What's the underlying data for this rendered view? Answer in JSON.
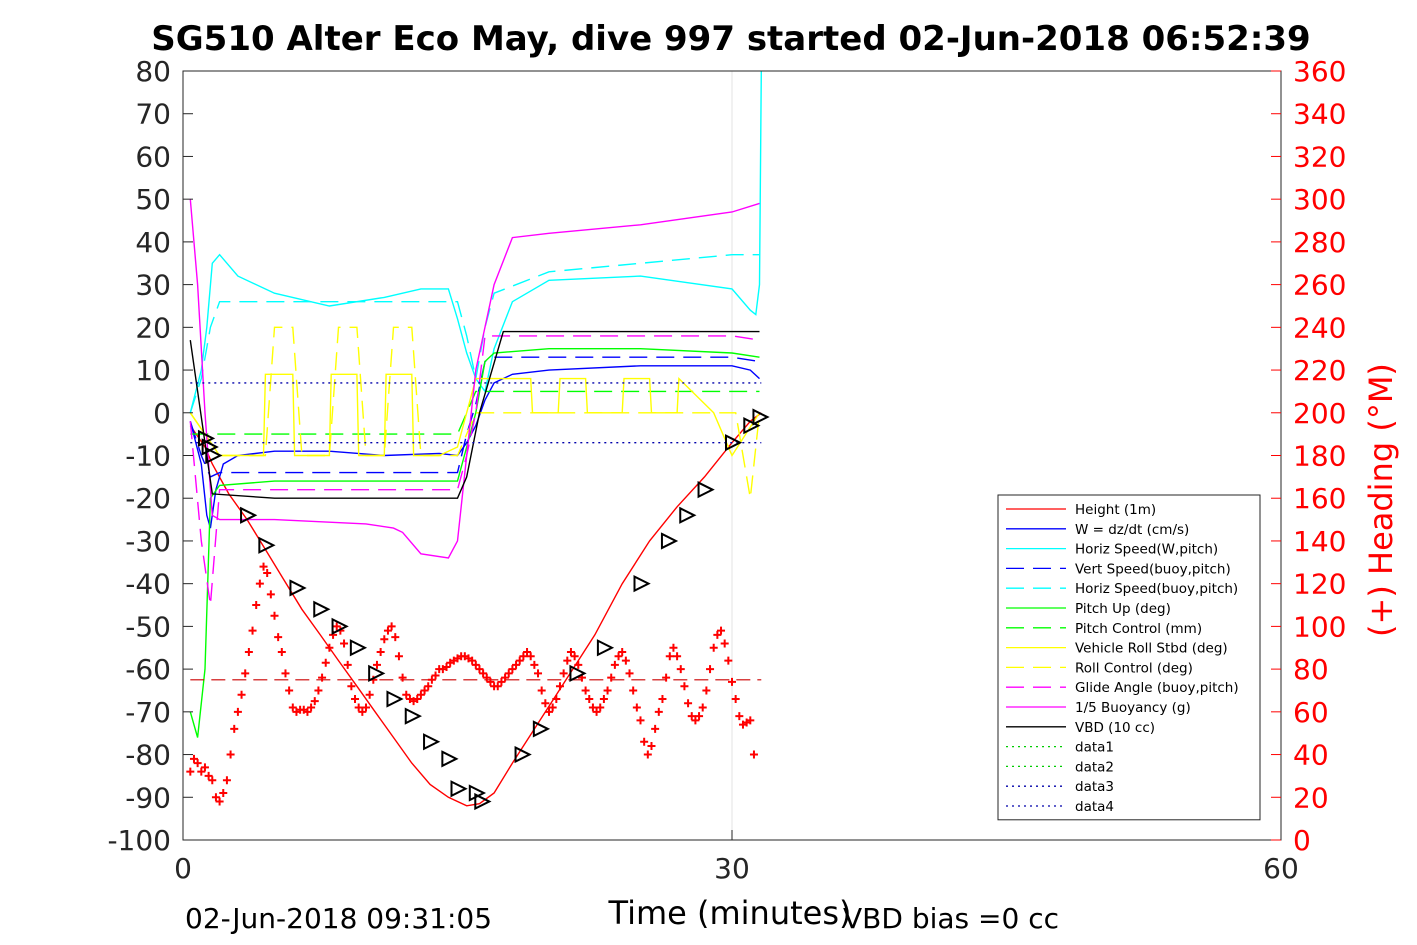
{
  "chart_data": {
    "type": "line",
    "title": "SG510 Alter Eco May, dive 997 started 02-Jun-2018 06:52:39",
    "xlabel": "Time (minutes)",
    "ylabel_right": "(+) Heading (°M)",
    "footer_left": "02-Jun-2018 09:31:05",
    "footer_right": "VBD bias =0 cc",
    "xlim": [
      0,
      60
    ],
    "ylim": [
      -100,
      80
    ],
    "ylim_right": [
      0,
      360
    ],
    "x_ticks": [
      0,
      30,
      60
    ],
    "y_ticks": [
      -100,
      -90,
      -80,
      -70,
      -60,
      -50,
      -40,
      -30,
      -20,
      -10,
      0,
      10,
      20,
      30,
      40,
      50,
      60,
      70,
      80
    ],
    "y_ticks_right": [
      0,
      20,
      40,
      60,
      80,
      100,
      120,
      140,
      160,
      180,
      200,
      220,
      240,
      260,
      280,
      300,
      320,
      340,
      360
    ],
    "grid": "x only",
    "legend_position": "bottom-right",
    "series": [
      {
        "name": "Height (1m)",
        "color": "#ff0000",
        "style": "solid",
        "x": [
          0.4,
          1.2,
          1.6,
          2.5,
          3.5,
          4.5,
          5.5,
          6.5,
          7.5,
          8.5,
          9.5,
          10.5,
          11.5,
          12.5,
          13.5,
          14.5,
          15.5,
          16.2,
          17,
          18,
          19.5,
          21,
          22.5,
          24,
          25.5,
          27,
          28.5,
          30,
          31,
          31.6
        ],
        "y": [
          -3,
          -8,
          -12,
          -19,
          -25,
          -32,
          -39,
          -46,
          -52,
          -58,
          -64,
          -70,
          -76,
          -82,
          -87,
          -90,
          -92,
          -91.5,
          -89,
          -82,
          -72,
          -62,
          -52,
          -40,
          -30,
          -22,
          -15,
          -7,
          -2,
          0
        ]
      },
      {
        "name": "W = dz/dt (cm/s)",
        "color": "#0000ff",
        "style": "solid",
        "x": [
          0.4,
          1,
          1.3,
          1.5,
          1.8,
          2.2,
          3,
          5,
          8,
          11,
          14,
          15,
          15.5,
          16,
          16.5,
          17,
          18,
          20,
          25,
          30,
          31,
          31.5
        ],
        "y": [
          -2,
          -12,
          -24,
          -27,
          -18,
          -12,
          -10,
          -9,
          -9,
          -10,
          -9.5,
          -10,
          -7,
          -3,
          3,
          7,
          9,
          10,
          11,
          11,
          10,
          8
        ]
      },
      {
        "name": "Horiz Speed(W,pitch)",
        "color": "#00ffff",
        "style": "solid",
        "x": [
          0.4,
          1,
          1.3,
          1.6,
          2,
          3,
          5,
          8,
          11,
          13,
          14.5,
          15,
          15.5,
          16,
          16.5,
          17,
          18,
          20,
          25,
          30,
          31,
          31.3,
          31.5,
          31.6
        ],
        "y": [
          0,
          10,
          20,
          35,
          37,
          32,
          28,
          25,
          27,
          29,
          29,
          22,
          14,
          8,
          5,
          15,
          26,
          31,
          32,
          29,
          24,
          23,
          30,
          80
        ]
      },
      {
        "name": "Vert Speed(buoy,pitch)",
        "color": "#0000ff",
        "style": "dashed",
        "x": [
          0.4,
          1,
          1.5,
          2,
          5,
          10,
          15,
          15.5,
          16,
          16.5,
          17,
          20,
          25,
          30,
          31.5
        ],
        "y": [
          -2,
          -10,
          -15,
          -14,
          -14,
          -14,
          -14,
          -5,
          2,
          12,
          13,
          13,
          13,
          13,
          12
        ]
      },
      {
        "name": "Horiz Speed(buoy,pitch)",
        "color": "#00ffff",
        "style": "dashed",
        "x": [
          0.4,
          1,
          1.5,
          2,
          5,
          10,
          15,
          15.5,
          16,
          16.5,
          17,
          20,
          25,
          30,
          31.5
        ],
        "y": [
          0,
          8,
          20,
          26,
          26,
          26,
          26,
          18,
          8,
          20,
          28,
          33,
          35,
          37,
          37
        ]
      },
      {
        "name": "Pitch Up (deg)",
        "color": "#00ff00",
        "style": "solid",
        "x": [
          0.4,
          0.8,
          1.2,
          1.5,
          2,
          5,
          10,
          15,
          15.5,
          16,
          16.5,
          17,
          20,
          25,
          30,
          31.5
        ],
        "y": [
          -70,
          -76,
          -60,
          -20,
          -17,
          -16,
          -16,
          -16,
          -8,
          0,
          12,
          14,
          15,
          15,
          14,
          13
        ]
      },
      {
        "name": "Pitch Control (mm)",
        "color": "#00ff00",
        "style": "dashed",
        "x": [
          0.4,
          1.5,
          5,
          10,
          15,
          15.5,
          16,
          17,
          20,
          25,
          31.5
        ],
        "y": [
          -5,
          -5,
          -5,
          -5,
          -5,
          0,
          5,
          5,
          5,
          5,
          5
        ]
      },
      {
        "name": "Vehicle Roll Stbd (deg)",
        "color": "#ffff00",
        "style": "solid",
        "x": [
          0.4,
          2,
          4.4,
          4.5,
          6,
          6.1,
          8,
          8.1,
          9.5,
          9.6,
          11,
          11.1,
          12.5,
          12.6,
          14,
          15,
          16,
          18,
          19,
          19.1,
          20.5,
          20.6,
          22,
          22.1,
          24,
          24.1,
          25.5,
          25.6,
          27,
          27.1,
          29,
          30,
          31.5
        ],
        "y": [
          0,
          -10,
          -10,
          9,
          9,
          -10,
          -10,
          9,
          9,
          -10,
          -10,
          9,
          9,
          -10,
          -10,
          -8,
          8,
          8,
          8,
          0,
          0,
          8,
          8,
          0,
          0,
          8,
          8,
          0,
          0,
          8,
          0,
          -10,
          0
        ]
      },
      {
        "name": "Roll Control (deg)",
        "color": "#ffff00",
        "style": "dashed",
        "x": [
          0.4,
          2,
          4.5,
          5,
          6,
          6.5,
          8,
          8.5,
          9.5,
          10,
          11,
          11.5,
          12.5,
          13,
          14,
          15,
          16,
          17,
          30.2,
          31,
          31.5
        ],
        "y": [
          0,
          -10,
          -10,
          20,
          20,
          -10,
          -10,
          20,
          20,
          -10,
          -10,
          20,
          20,
          -10,
          -10,
          -10,
          0,
          0,
          0,
          -20,
          0
        ]
      },
      {
        "name": "Glide Angle (buoy,pitch)",
        "color": "#ff00ff",
        "style": "dashed",
        "x": [
          0.4,
          1,
          1.5,
          2,
          5,
          10,
          15,
          15.5,
          16,
          16.5,
          17,
          20,
          25,
          30,
          31.5
        ],
        "y": [
          -2,
          -30,
          -45,
          -18,
          -18,
          -18,
          -18,
          -10,
          0,
          18,
          18,
          18,
          18,
          18,
          17
        ]
      },
      {
        "name": "1/5 Buoyancy (g)",
        "color": "#ff00ff",
        "style": "solid",
        "x": [
          0.4,
          0.8,
          1.2,
          1.6,
          2,
          5,
          10,
          11.5,
          12,
          13,
          14.5,
          15,
          15.5,
          16,
          17,
          18,
          20,
          25,
          30,
          31.5
        ],
        "y": [
          50,
          30,
          0,
          -24,
          -25,
          -25,
          -26,
          -27,
          -28,
          -33,
          -34,
          -30,
          -10,
          10,
          30,
          41,
          42,
          44,
          47,
          49
        ]
      },
      {
        "name": "VBD (10 cc)",
        "color": "#000000",
        "style": "solid",
        "x": [
          0.4,
          1.3,
          1.6,
          5,
          10,
          15,
          15.5,
          16.2,
          17.5,
          20,
          25,
          30,
          31.5
        ],
        "y": [
          17,
          -10,
          -19,
          -20,
          -20,
          -20,
          -15,
          0,
          19,
          19,
          19,
          19,
          19
        ]
      },
      {
        "name": "data1",
        "color": "#00cc00",
        "style": "dotted",
        "x": [],
        "y": []
      },
      {
        "name": "data2",
        "color": "#00cc00",
        "style": "dotted",
        "x": [],
        "y": []
      },
      {
        "name": "data3",
        "color": "#0000aa",
        "style": "dotted",
        "x": [
          0.4,
          31.6
        ],
        "y": [
          7,
          7
        ]
      },
      {
        "name": "data4",
        "color": "#0000aa",
        "style": "dotted",
        "x": [
          0.4,
          31.6
        ],
        "y": [
          -7,
          -7
        ]
      }
    ],
    "heading_mean_dashed": {
      "color": "#cc0000",
      "x": [
        0.4,
        31.6
      ],
      "heading": 75
    },
    "heading_points": {
      "color": "#ff0000",
      "x": [
        0.4,
        0.6,
        0.8,
        1.0,
        1.2,
        1.4,
        1.6,
        1.8,
        2.0,
        2.2,
        2.4,
        2.6,
        2.8,
        3.0,
        3.2,
        3.4,
        3.6,
        3.8,
        4.0,
        4.2,
        4.4,
        4.6,
        4.8,
        5.0,
        5.2,
        5.4,
        5.6,
        5.8,
        6.0,
        6.2,
        6.4,
        6.6,
        6.8,
        7.0,
        7.2,
        7.4,
        7.6,
        7.8,
        8.0,
        8.2,
        8.4,
        8.6,
        8.8,
        9.0,
        9.2,
        9.4,
        9.6,
        9.8,
        10.0,
        10.2,
        10.4,
        10.6,
        10.8,
        11.0,
        11.2,
        11.4,
        11.6,
        11.8,
        12.0,
        12.2,
        12.4,
        12.6,
        12.8,
        13.0,
        13.2,
        13.4,
        13.6,
        13.8,
        14.0,
        14.2,
        14.4,
        14.6,
        14.8,
        15.0,
        15.2,
        15.4,
        15.6,
        15.8,
        16.0,
        16.2,
        16.4,
        16.6,
        16.8,
        17.0,
        17.2,
        17.4,
        17.6,
        17.8,
        18.0,
        18.2,
        18.4,
        18.6,
        18.8,
        19.0,
        19.2,
        19.4,
        19.6,
        19.8,
        20.0,
        20.2,
        20.4,
        20.6,
        20.8,
        21.0,
        21.2,
        21.4,
        21.6,
        21.8,
        22.0,
        22.2,
        22.4,
        22.6,
        22.8,
        23.0,
        23.2,
        23.4,
        23.6,
        23.8,
        24.0,
        24.2,
        24.4,
        24.6,
        24.8,
        25.0,
        25.2,
        25.4,
        25.6,
        25.8,
        26.0,
        26.2,
        26.4,
        26.6,
        26.8,
        27.0,
        27.2,
        27.4,
        27.6,
        27.8,
        28.0,
        28.2,
        28.4,
        28.6,
        28.8,
        29.0,
        29.2,
        29.4,
        29.6,
        29.8,
        30.0,
        30.2,
        30.4,
        30.6,
        30.8,
        31.0,
        31.2,
        31.4,
        31.6
      ],
      "heading": [
        32,
        38,
        36,
        32,
        34,
        30,
        28,
        20,
        18,
        22,
        28,
        40,
        52,
        60,
        68,
        78,
        88,
        98,
        110,
        120,
        128,
        125,
        115,
        105,
        95,
        88,
        78,
        70,
        62,
        60,
        61,
        61,
        60,
        62,
        65,
        70,
        76,
        83,
        90,
        96,
        100,
        98,
        92,
        82,
        72,
        66,
        62,
        60,
        62,
        68,
        75,
        82,
        88,
        94,
        98,
        100,
        95,
        86,
        76,
        68,
        66,
        65,
        66,
        68,
        70,
        72,
        75,
        77,
        80,
        80,
        81,
        83,
        84,
        85,
        86,
        86,
        85,
        84,
        82,
        80,
        78,
        76,
        74,
        72,
        72,
        74,
        76,
        78,
        80,
        82,
        84,
        86,
        88,
        86,
        82,
        78,
        70,
        64,
        60,
        62,
        66,
        72,
        78,
        84,
        88,
        86,
        82,
        76,
        70,
        66,
        62,
        60,
        62,
        66,
        70,
        76,
        82,
        86,
        88,
        84,
        78,
        70,
        62,
        56,
        46,
        40,
        44,
        52,
        60,
        66,
        76,
        86,
        90,
        86,
        80,
        72,
        64,
        58,
        56,
        58,
        62,
        70,
        80,
        90,
        96,
        98,
        92,
        84,
        74,
        66,
        58,
        54,
        55,
        56,
        40
      ]
    },
    "depth_markers": {
      "color": "#000000",
      "x": [
        1.2,
        1.4,
        1.6,
        3.5,
        4.5,
        6.2,
        7.5,
        8.5,
        9.5,
        10.5,
        11.5,
        12.5,
        13.5,
        14.5,
        15,
        16,
        16.3,
        18.5,
        19.5,
        21.5,
        23,
        25,
        26.5,
        27.5,
        28.5,
        30,
        31,
        31.5
      ],
      "y": [
        -6,
        -8,
        -10,
        -24,
        -31,
        -41,
        -46,
        -50,
        -55,
        -61,
        -67,
        -71,
        -77,
        -81,
        -88,
        -89,
        -91,
        -80,
        -74,
        -61,
        -55,
        -40,
        -30,
        -24,
        -18,
        -7,
        -3,
        -1
      ]
    }
  }
}
